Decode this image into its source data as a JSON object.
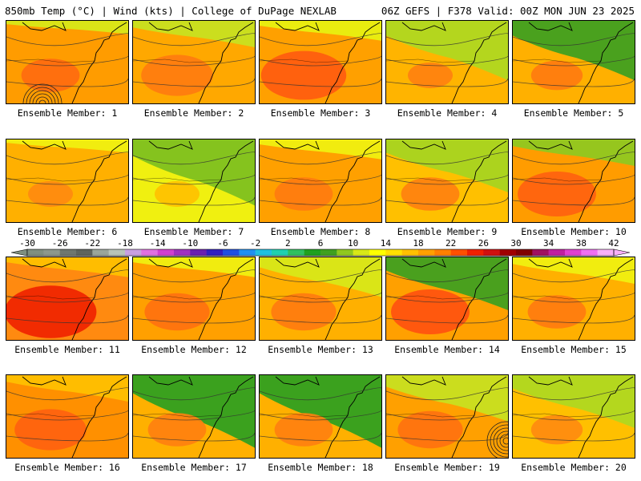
{
  "header": {
    "left": "850mb Temp (°C) | Wind (kts) | College of DuPage NEXLAB",
    "right": "06Z GEFS | F378 Valid: 00Z MON JUN 23 2025"
  },
  "colorbar": {
    "tick_labels": [
      "-30",
      "-26",
      "-22",
      "-18",
      "-14",
      "-10",
      "-6",
      "-2",
      "2",
      "6",
      "10",
      "14",
      "18",
      "22",
      "26",
      "30",
      "34",
      "38",
      "42"
    ],
    "min": -30,
    "max": 42,
    "step": 2,
    "colors": [
      "#7f8f7f",
      "#8c988c",
      "#6f776f",
      "#5e655e",
      "#9aa69a",
      "#b8c4b8",
      "#c8a0e0",
      "#e070e0",
      "#d040d0",
      "#a030c0",
      "#6a20b0",
      "#3020c0",
      "#2050e0",
      "#2090f0",
      "#20c0e0",
      "#20d0b0",
      "#30c060",
      "#20a020",
      "#40a020",
      "#90c820",
      "#d8e818",
      "#ffff00",
      "#ffe000",
      "#ffc000",
      "#ffa000",
      "#ff8000",
      "#ff5000",
      "#f02000",
      "#d01010",
      "#a00000",
      "#800000",
      "#a01060",
      "#c020a0",
      "#e040d0",
      "#f070f0",
      "#f8b0f8"
    ]
  },
  "panels": [
    {
      "label": "Ensemble Member: 1",
      "base": "#ff9c00",
      "warm": "#ff6a10",
      "cool": "#d8e818",
      "cool_level": 0.1,
      "warm_level": 0.3,
      "low": true
    },
    {
      "label": "Ensemble Member: 2",
      "base": "#ffa800",
      "warm": "#ff7a10",
      "cool": "#c8e020",
      "cool_level": 0.2,
      "warm_level": 0.4,
      "low": false
    },
    {
      "label": "Ensemble Member: 3",
      "base": "#ffa000",
      "warm": "#ff5a10",
      "cool": "#e8f010",
      "cool_level": 0.15,
      "warm_level": 0.5,
      "low": false
    },
    {
      "label": "Ensemble Member: 4",
      "base": "#ffb400",
      "warm": "#ff8010",
      "cool": "#b0d820",
      "cool_level": 0.45,
      "warm_level": 0.2,
      "low": false
    },
    {
      "label": "Ensemble Member: 5",
      "base": "#ffb000",
      "warm": "#ff7a10",
      "cool": "#40a020",
      "cool_level": 0.45,
      "warm_level": 0.25,
      "low": false
    },
    {
      "label": "Ensemble Member: 6",
      "base": "#ffb000",
      "warm": "#ff8a10",
      "cool": "#f0f010",
      "cool_level": 0.1,
      "warm_level": 0.2,
      "low": false
    },
    {
      "label": "Ensemble Member: 7",
      "base": "#f0f010",
      "warm": "#ffc000",
      "cool": "#7ec020",
      "cool_level": 0.5,
      "warm_level": 0.2,
      "low": false
    },
    {
      "label": "Ensemble Member: 8",
      "base": "#ffa000",
      "warm": "#ff7a10",
      "cool": "#f0f010",
      "cool_level": 0.15,
      "warm_level": 0.3,
      "low": false
    },
    {
      "label": "Ensemble Member: 9",
      "base": "#ffc000",
      "warm": "#ff8010",
      "cool": "#a8d420",
      "cool_level": 0.4,
      "warm_level": 0.3,
      "low": false
    },
    {
      "label": "Ensemble Member: 10",
      "base": "#ff9c00",
      "warm": "#ff6010",
      "cool": "#90c820",
      "cool_level": 0.2,
      "warm_level": 0.45,
      "low": false
    },
    {
      "label": "Ensemble Member: 11",
      "base": "#ff8a10",
      "warm": "#f02000",
      "cool": "#ffc000",
      "cool_level": 0.15,
      "warm_level": 0.55,
      "low": false
    },
    {
      "label": "Ensemble Member: 12",
      "base": "#ffa000",
      "warm": "#ff7010",
      "cool": "#f0f010",
      "cool_level": 0.15,
      "warm_level": 0.35,
      "low": false
    },
    {
      "label": "Ensemble Member: 13",
      "base": "#ffb000",
      "warm": "#ff7a10",
      "cool": "#d8e818",
      "cool_level": 0.3,
      "warm_level": 0.35,
      "low": false
    },
    {
      "label": "Ensemble Member: 14",
      "base": "#ffa000",
      "warm": "#ff5010",
      "cool": "#40a020",
      "cool_level": 0.4,
      "warm_level": 0.45,
      "low": false
    },
    {
      "label": "Ensemble Member: 15",
      "base": "#ffb000",
      "warm": "#ff7a10",
      "cool": "#f0f010",
      "cool_level": 0.2,
      "warm_level": 0.3,
      "low": false
    },
    {
      "label": "Ensemble Member: 16",
      "base": "#ff9000",
      "warm": "#ff6010",
      "cool": "#ffc000",
      "cool_level": 0.2,
      "warm_level": 0.4,
      "low": false
    },
    {
      "label": "Ensemble Member: 17",
      "base": "#ffb000",
      "warm": "#ff8010",
      "cool": "#30a020",
      "cool_level": 0.55,
      "warm_level": 0.3,
      "low": false
    },
    {
      "label": "Ensemble Member: 18",
      "base": "#ffb000",
      "warm": "#ff8010",
      "cool": "#30a020",
      "cool_level": 0.55,
      "warm_level": 0.3,
      "low": false
    },
    {
      "label": "Ensemble Member: 19",
      "base": "#ffa000",
      "warm": "#ff7010",
      "cool": "#c8e020",
      "cool_level": 0.35,
      "warm_level": 0.35,
      "low": true
    },
    {
      "label": "Ensemble Member: 20",
      "base": "#ffc000",
      "warm": "#ff8a10",
      "cool": "#b0d820",
      "cool_level": 0.4,
      "warm_level": 0.25,
      "low": false
    }
  ]
}
